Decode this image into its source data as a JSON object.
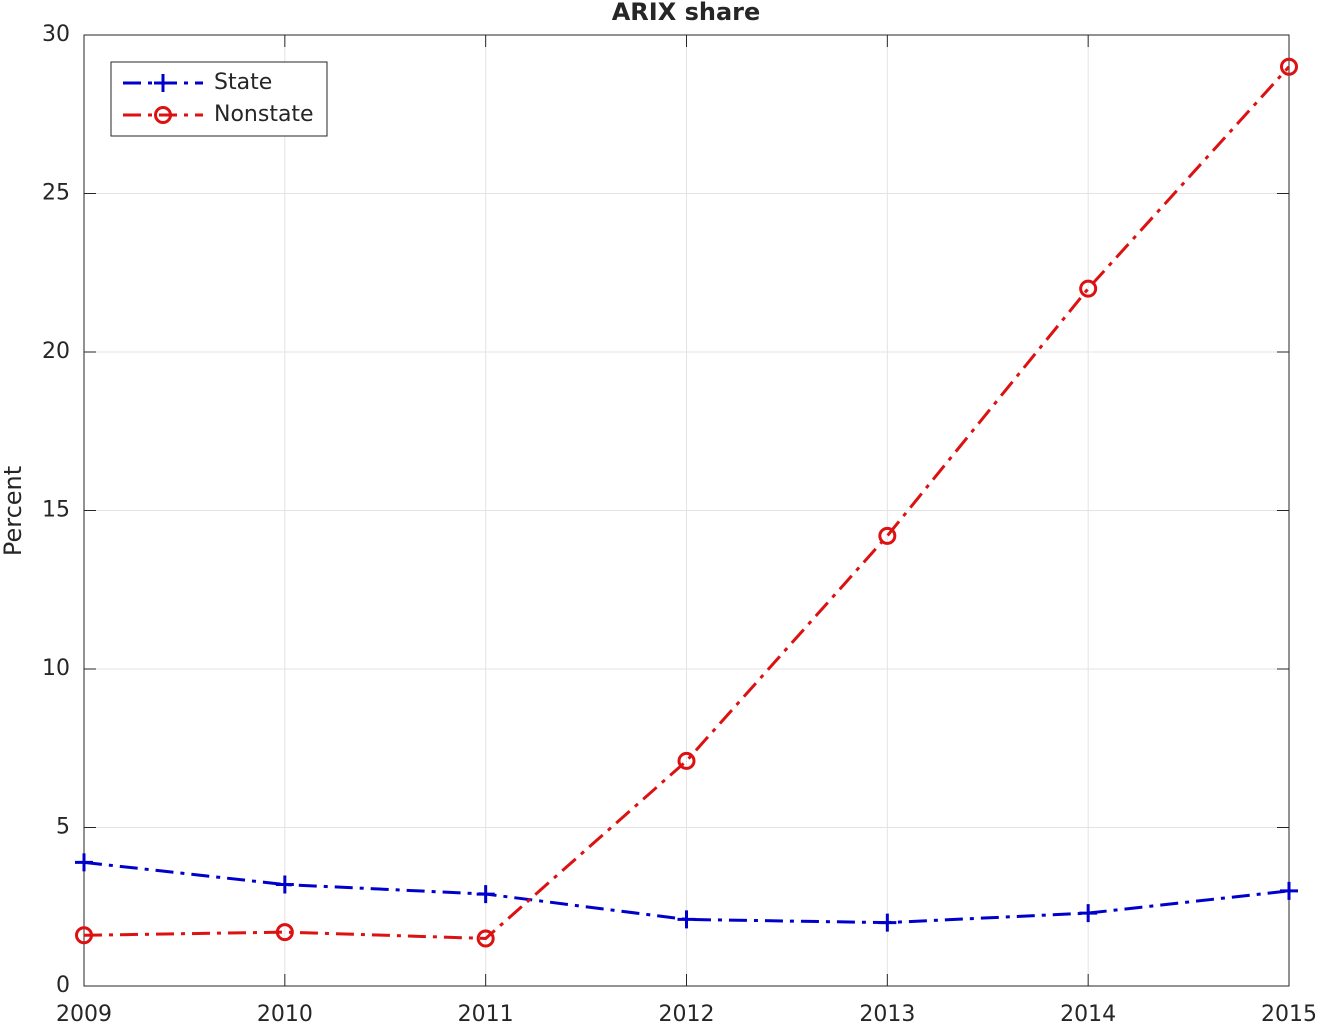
{
  "chart_data": {
    "type": "line",
    "title": "ARIX share",
    "y_label": "Percent",
    "x": [
      2009,
      2010,
      2011,
      2012,
      2013,
      2014,
      2015
    ],
    "series": [
      {
        "name": "State",
        "color": "#0000cc",
        "marker": "plus",
        "values": [
          3.9,
          3.2,
          2.9,
          2.1,
          2.0,
          2.3,
          3.0
        ]
      },
      {
        "name": "Nonstate",
        "color": "#dd1111",
        "marker": "circle",
        "values": [
          1.6,
          1.7,
          1.5,
          7.1,
          14.2,
          22.0,
          29.0
        ]
      }
    ],
    "xlim": [
      2009,
      2015
    ],
    "xticks": [
      2009,
      2010,
      2011,
      2012,
      2013,
      2014,
      2015
    ],
    "ylim": [
      0,
      30
    ],
    "yticks": [
      0,
      5,
      10,
      15,
      20,
      25,
      30
    ],
    "grid": true,
    "legend": "top-left"
  }
}
